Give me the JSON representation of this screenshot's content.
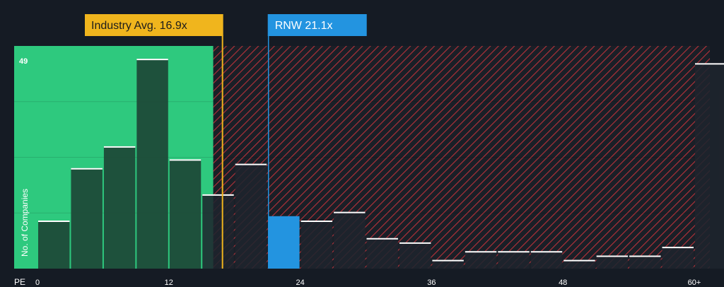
{
  "chart_data": {
    "type": "bar",
    "xlabel": "PE",
    "ylabel": "No. of Companies",
    "y_max_label": "49",
    "ylim": [
      0,
      49
    ],
    "xlim": [
      -1,
      61
    ],
    "x_ticks": [
      {
        "value": 0,
        "label": "0"
      },
      {
        "value": 12,
        "label": "12"
      },
      {
        "value": 24,
        "label": "24"
      },
      {
        "value": 36,
        "label": "36"
      },
      {
        "value": 48,
        "label": "48"
      },
      {
        "value": 60,
        "label": "60+"
      }
    ],
    "bin_width": 3,
    "bins": [
      {
        "start": 0,
        "count": 11
      },
      {
        "start": 3,
        "count": 23
      },
      {
        "start": 6,
        "count": 28
      },
      {
        "start": 9,
        "count": 48
      },
      {
        "start": 12,
        "count": 25
      },
      {
        "start": 15,
        "count": 17
      },
      {
        "start": 18,
        "count": 24
      },
      {
        "start": 21,
        "count": 12
      },
      {
        "start": 24,
        "count": 11
      },
      {
        "start": 27,
        "count": 13
      },
      {
        "start": 30,
        "count": 7
      },
      {
        "start": 33,
        "count": 6
      },
      {
        "start": 36,
        "count": 2
      },
      {
        "start": 39,
        "count": 4
      },
      {
        "start": 42,
        "count": 4
      },
      {
        "start": 45,
        "count": 4
      },
      {
        "start": 48,
        "count": 2
      },
      {
        "start": 51,
        "count": 3
      },
      {
        "start": 54,
        "count": 3
      },
      {
        "start": 57,
        "count": 5
      },
      {
        "start": 60,
        "count": 47
      }
    ],
    "industry_avg": {
      "label": "Industry Avg. 16.9x",
      "value": 16.9
    },
    "company": {
      "label": "RNW 21.1x",
      "value": 21.1
    },
    "colors": {
      "background": "#151b24",
      "fair_zone": "#2ec97e",
      "expensive_hatch": "#b8323a",
      "bar_dark": "#1d4636",
      "bar_neutral": "#1e242d",
      "company_bar": "#2394e0",
      "industry_line": "#f0b51d",
      "company_line": "#2394e0"
    }
  }
}
